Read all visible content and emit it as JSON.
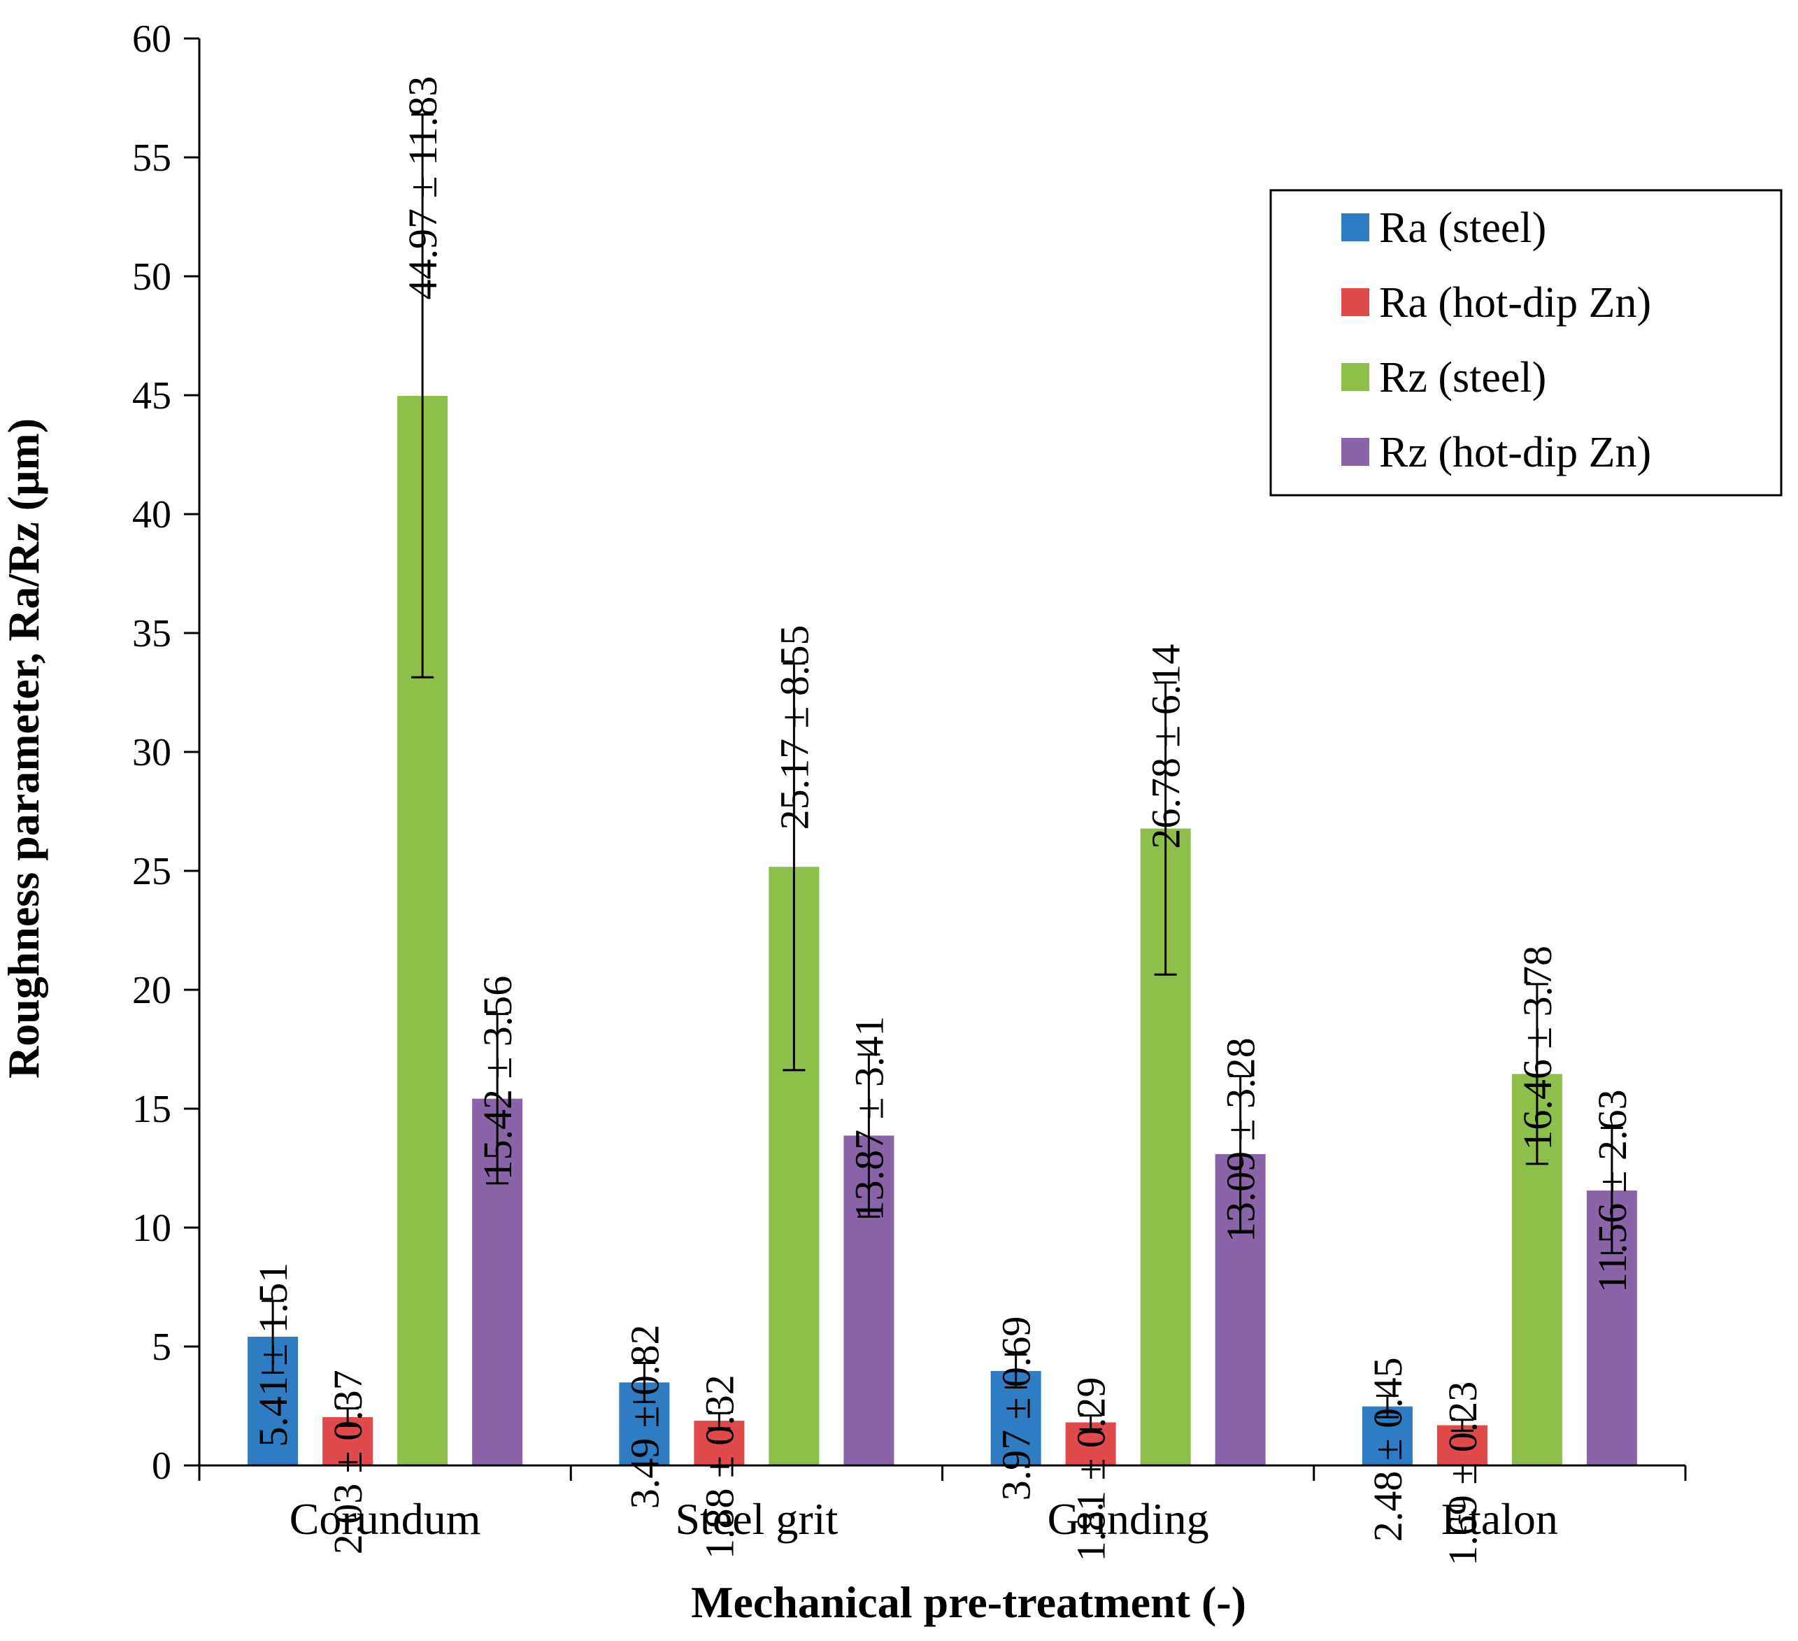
{
  "chart_data": {
    "type": "bar",
    "title": "",
    "xlabel": "Mechanical pre-treatment  (-)",
    "ylabel": "Roughness parameter, Ra/Rz (μm)",
    "ylim": [
      0,
      60
    ],
    "yticks": [
      0,
      5,
      10,
      15,
      20,
      25,
      30,
      35,
      40,
      45,
      50,
      55,
      60
    ],
    "grid": false,
    "legend_position": "top-right",
    "categories": [
      "Corundum",
      "Steel grit",
      "Grinding",
      "Etalon"
    ],
    "series": [
      {
        "name": "Ra (steel)",
        "color": "#2e7dc2",
        "values": [
          5.41,
          3.49,
          3.97,
          2.48
        ],
        "errors": [
          1.51,
          0.82,
          0.69,
          0.45
        ],
        "labels": [
          "5.41 ± 1.51",
          "3.49 ± 0.82",
          "3.97 ± 0.69",
          "2.48 ± 0.45"
        ]
      },
      {
        "name": "Ra (hot-dip Zn)",
        "color": "#e04a4a",
        "values": [
          2.03,
          1.88,
          1.81,
          1.69
        ],
        "errors": [
          0.37,
          0.32,
          0.29,
          0.23
        ],
        "labels": [
          "2.03 ± 0.37",
          "1.88 ± 0.32",
          "1.81 ± 0.29",
          "1.69 ± 0.23"
        ]
      },
      {
        "name": "Rz (steel)",
        "color": "#8dbf4a",
        "values": [
          44.97,
          25.17,
          26.78,
          16.46
        ],
        "errors": [
          11.83,
          8.55,
          6.14,
          3.78
        ],
        "labels": [
          "44.97 ± 11.83",
          "25.17 ± 8.55",
          "26.78 ± 6.14",
          "16.46 ± 3.78"
        ]
      },
      {
        "name": "Rz (hot-dip Zn)",
        "color": "#8a64a8",
        "values": [
          15.42,
          13.87,
          13.09,
          11.56
        ],
        "errors": [
          3.56,
          3.41,
          3.28,
          2.63
        ],
        "labels": [
          "15.42 ± 3.56",
          "13.87 ± 3.41",
          "13.09 ± 3.28",
          "11.56 ± 2.63"
        ]
      }
    ]
  }
}
